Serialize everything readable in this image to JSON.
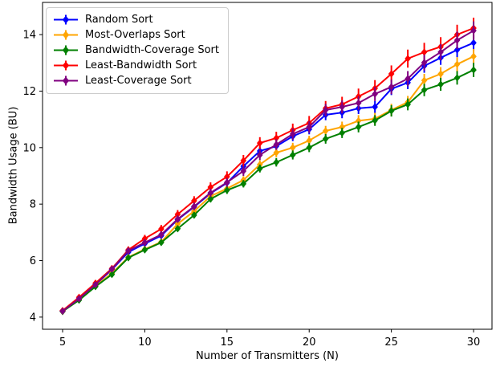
{
  "chart_data": {
    "type": "line",
    "title": "",
    "xlabel": "Number of Transmitters (N)",
    "ylabel": "Bandwidth Usage (BU)",
    "x": [
      5,
      6,
      7,
      8,
      9,
      10,
      11,
      12,
      13,
      14,
      15,
      16,
      17,
      18,
      19,
      20,
      21,
      22,
      23,
      24,
      25,
      26,
      27,
      28,
      29,
      30
    ],
    "xticks": [
      5,
      10,
      15,
      20,
      25,
      30
    ],
    "yticks": [
      4,
      6,
      8,
      10,
      12,
      14
    ],
    "xlim": [
      3.78,
      31.12
    ],
    "ylim": [
      3.57,
      15.14
    ],
    "grid": false,
    "legend_position": "upper-left",
    "marker": "diamond",
    "error_bars": true,
    "axis_color": "#000000",
    "background_color": "#ffffff",
    "series": [
      {
        "name": "Random Sort",
        "color": "#0000ff",
        "values": [
          4.22,
          4.65,
          5.15,
          5.68,
          6.3,
          6.6,
          6.88,
          7.45,
          7.9,
          8.38,
          8.75,
          9.34,
          9.88,
          10.05,
          10.4,
          10.65,
          11.16,
          11.24,
          11.39,
          11.44,
          12.08,
          12.3,
          12.89,
          13.18,
          13.46,
          13.71
        ],
        "err": [
          0.06,
          0.07,
          0.08,
          0.08,
          0.09,
          0.1,
          0.11,
          0.12,
          0.12,
          0.13,
          0.14,
          0.15,
          0.16,
          0.16,
          0.17,
          0.18,
          0.19,
          0.2,
          0.2,
          0.21,
          0.22,
          0.23,
          0.24,
          0.25,
          0.26,
          0.28
        ]
      },
      {
        "name": "Most-Overlaps Sort",
        "color": "#ffa500",
        "values": [
          4.2,
          4.62,
          5.1,
          5.55,
          6.12,
          6.4,
          6.66,
          7.3,
          7.75,
          8.28,
          8.55,
          8.85,
          9.4,
          9.82,
          10.0,
          10.25,
          10.59,
          10.73,
          10.95,
          11.02,
          11.33,
          11.61,
          12.38,
          12.61,
          12.95,
          13.23
        ],
        "err": [
          0.05,
          0.06,
          0.07,
          0.08,
          0.09,
          0.09,
          0.1,
          0.11,
          0.12,
          0.13,
          0.13,
          0.14,
          0.15,
          0.16,
          0.17,
          0.17,
          0.18,
          0.19,
          0.2,
          0.21,
          0.22,
          0.22,
          0.23,
          0.24,
          0.25,
          0.26
        ]
      },
      {
        "name": "Bandwidth-Coverage Sort",
        "color": "#008000",
        "values": [
          4.2,
          4.6,
          5.08,
          5.51,
          6.1,
          6.38,
          6.64,
          7.13,
          7.61,
          8.18,
          8.49,
          8.72,
          9.26,
          9.48,
          9.74,
          10.0,
          10.31,
          10.52,
          10.73,
          10.96,
          11.3,
          11.53,
          12.04,
          12.24,
          12.47,
          12.75
        ],
        "err": [
          0.05,
          0.06,
          0.07,
          0.07,
          0.08,
          0.09,
          0.1,
          0.1,
          0.11,
          0.12,
          0.13,
          0.13,
          0.14,
          0.15,
          0.16,
          0.16,
          0.17,
          0.18,
          0.19,
          0.19,
          0.2,
          0.21,
          0.22,
          0.23,
          0.24,
          0.25
        ]
      },
      {
        "name": "Least-Bandwidth Sort",
        "color": "#ff0000",
        "values": [
          4.23,
          4.7,
          5.2,
          5.72,
          6.38,
          6.78,
          7.12,
          7.64,
          8.12,
          8.6,
          8.97,
          9.54,
          10.16,
          10.34,
          10.62,
          10.87,
          11.39,
          11.53,
          11.81,
          12.1,
          12.61,
          13.15,
          13.38,
          13.57,
          14.0,
          14.23
        ],
        "err": [
          0.08,
          0.09,
          0.1,
          0.11,
          0.12,
          0.13,
          0.14,
          0.15,
          0.16,
          0.17,
          0.19,
          0.2,
          0.21,
          0.22,
          0.23,
          0.25,
          0.26,
          0.27,
          0.28,
          0.29,
          0.3,
          0.32,
          0.33,
          0.34,
          0.35,
          0.37
        ]
      },
      {
        "name": "Least-Coverage Sort",
        "color": "#800080",
        "values": [
          4.21,
          4.65,
          5.15,
          5.7,
          6.35,
          6.64,
          6.92,
          7.47,
          7.92,
          8.4,
          8.77,
          9.17,
          9.74,
          10.11,
          10.48,
          10.73,
          11.33,
          11.44,
          11.58,
          11.9,
          12.15,
          12.44,
          13.01,
          13.38,
          13.8,
          14.14
        ],
        "err": [
          0.06,
          0.07,
          0.08,
          0.09,
          0.1,
          0.11,
          0.12,
          0.13,
          0.14,
          0.15,
          0.16,
          0.17,
          0.18,
          0.19,
          0.2,
          0.21,
          0.22,
          0.23,
          0.24,
          0.25,
          0.26,
          0.27,
          0.28,
          0.29,
          0.31,
          0.33
        ]
      }
    ]
  }
}
